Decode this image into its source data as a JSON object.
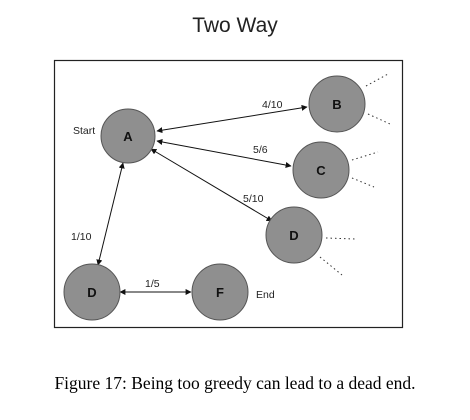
{
  "title": "Two Way",
  "caption": "Figure 17: Being too greedy can lead to a dead end.",
  "labels": {
    "start": "Start",
    "end": "End"
  },
  "nodes": {
    "A": "A",
    "B": "B",
    "C": "C",
    "D_right": "D",
    "D_left": "D",
    "F": "F"
  },
  "edges": {
    "A_B": "4/10",
    "A_C": "5/6",
    "A_D_right": "5/10",
    "A_D_left": "1/10",
    "D_F": "1/5"
  },
  "colors": {
    "node_fill": "#8f8f8f",
    "node_stroke": "#555555",
    "line": "#111111",
    "frame": "#222222"
  }
}
